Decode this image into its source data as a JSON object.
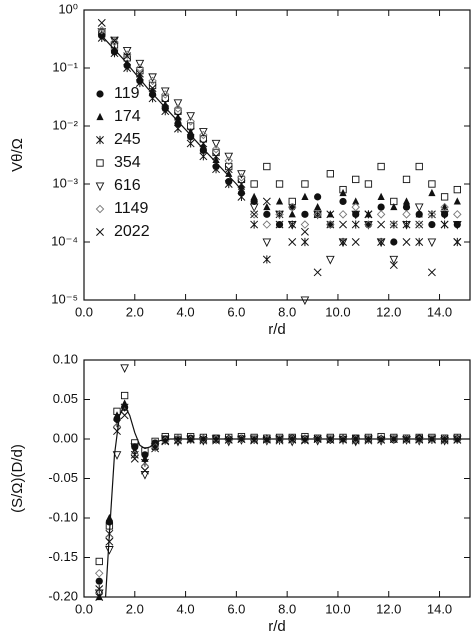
{
  "chart_data": [
    {
      "type": "scatter",
      "log_y": true,
      "legend": "center left",
      "xlabel": "r/d",
      "ylabel": "Vθ/Ω",
      "xlim": [
        0,
        15.2
      ],
      "ylim": [
        1e-05,
        1
      ],
      "xticks": [
        {
          "value": 0,
          "label": "0.0"
        },
        {
          "value": 2,
          "label": "2.0"
        },
        {
          "value": 4,
          "label": "4.0"
        },
        {
          "value": 6,
          "label": "6.0"
        },
        {
          "value": 8,
          "label": "8.0"
        },
        {
          "value": 10,
          "label": "10.0"
        },
        {
          "value": 12,
          "label": "12.0"
        },
        {
          "value": 14,
          "label": "14.0"
        }
      ],
      "yticks": [
        {
          "value": 1,
          "label": "10⁰"
        },
        {
          "value": 0.1,
          "label": "10⁻¹"
        },
        {
          "value": 0.01,
          "label": "10⁻²"
        },
        {
          "value": 0.001,
          "label": "10⁻³"
        },
        {
          "value": 0.0001,
          "label": "10⁻⁴"
        },
        {
          "value": 1e-05,
          "label": "10⁻⁵"
        }
      ],
      "x": [
        0.7,
        1.2,
        1.7,
        2.2,
        2.7,
        3.2,
        3.7,
        4.2,
        4.7,
        5.2,
        5.7,
        6.2,
        6.7,
        7.2,
        7.7,
        8.2,
        8.7,
        9.2,
        9.7,
        10.2,
        10.7,
        11.2,
        11.7,
        12.2,
        12.7,
        13.2,
        13.7,
        14.2,
        14.7
      ],
      "series": [
        {
          "name": "119",
          "marker": "circle",
          "color": "#111",
          "values": [
            0.36,
            0.19,
            0.11,
            0.06,
            0.035,
            0.02,
            0.011,
            0.0065,
            0.0038,
            0.002,
            0.0011,
            0.0007,
            0.0005,
            0.0003,
            0.0002,
            0.0004,
            0.0003,
            0.0006,
            0.0002,
            0.0005,
            0.0003,
            0.0002,
            0.0004,
            0.0001,
            0.0004,
            0.0003,
            0.0002,
            0.0003,
            0.0002
          ]
        },
        {
          "name": "174",
          "marker": "triangle",
          "color": "#111",
          "values": [
            0.38,
            0.21,
            0.12,
            0.07,
            0.04,
            0.023,
            0.014,
            0.0078,
            0.0045,
            0.0026,
            0.0015,
            0.0009,
            0.0006,
            0.0004,
            0.0005,
            0.0003,
            0.0006,
            0.0004,
            0.0003,
            0.0007,
            0.0005,
            0.0003,
            0.0006,
            0.0004,
            0.0005,
            0.0003,
            0.0007,
            0.0004,
            0.0005
          ]
        },
        {
          "name": "245",
          "marker": "asterisk",
          "color": "#111",
          "values": [
            0.33,
            0.18,
            0.1,
            0.055,
            0.03,
            0.018,
            0.009,
            0.005,
            0.003,
            0.0018,
            0.001,
            0.0006,
            0.0002,
            5e-05,
            0.0003,
            0.0002,
            0.0001,
            0.0003,
            0.0002,
            0.0001,
            0.0002,
            0.0003,
            0.0001,
            0.0002,
            0.0002,
            0.0001,
            0.0003,
            0.0002,
            0.0001
          ]
        },
        {
          "name": "354",
          "marker": "square",
          "color": "#111",
          "values": [
            0.4,
            0.25,
            0.15,
            0.09,
            0.05,
            0.03,
            0.018,
            0.01,
            0.006,
            0.0035,
            0.002,
            0.0012,
            0.001,
            0.002,
            0.001,
            0.0005,
            0.001,
            0.0003,
            0.0015,
            0.0008,
            0.0012,
            0.001,
            0.002,
            0.0005,
            0.0012,
            0.002,
            0.001,
            0.0006,
            0.0008
          ]
        },
        {
          "name": "616",
          "marker": "down-triangle",
          "color": "#111",
          "values": [
            0.42,
            0.3,
            0.2,
            0.12,
            0.07,
            0.04,
            0.025,
            0.015,
            0.008,
            0.005,
            0.003,
            0.0015,
            0.0004,
            0.0001,
            0.0003,
            0.0002,
            1e-05,
            0.0003,
            5e-05,
            0.0001,
            0.0003,
            0.0002,
            0.0001,
            5e-05,
            0.0002,
            0.0004,
            0.0001,
            0.0003,
            0.0002
          ]
        },
        {
          "name": "1149",
          "marker": "diamond",
          "color": "#777",
          "values": [
            0.45,
            0.28,
            0.17,
            0.1,
            0.06,
            0.035,
            0.02,
            0.012,
            0.007,
            0.004,
            0.0025,
            0.0013,
            0.0003,
            0.0002,
            0.0003,
            0.0004,
            0.0002,
            0.0003,
            0.0002,
            0.0003,
            0.0004,
            0.0002,
            0.0003,
            0.0002,
            0.0003,
            0.0002,
            0.0003,
            0.0004,
            0.0003
          ]
        },
        {
          "name": "2022",
          "marker": "cross",
          "color": "#111",
          "values": [
            0.6,
            0.3,
            0.16,
            0.08,
            0.045,
            0.025,
            0.015,
            0.008,
            0.005,
            0.003,
            0.0018,
            0.001,
            0.0003,
            0.0005,
            0.0002,
            0.0001,
            0.00015,
            3e-05,
            0.0003,
            0.0002,
            0.0001,
            0.0003,
            0.0002,
            4e-05,
            0.0001,
            0.0002,
            3e-05,
            0.0002,
            0.0001
          ]
        },
        {
          "marker": "line",
          "color": "#111",
          "x": [
            0.6,
            1.5,
            2.5,
            3.5,
            4.5,
            5.5,
            6.0,
            6.3
          ],
          "values": [
            0.4,
            0.15,
            0.045,
            0.015,
            0.005,
            0.0017,
            0.001,
            0.0007
          ]
        }
      ]
    },
    {
      "type": "scatter",
      "xlabel": "r/d",
      "ylabel": "(S/Ω)(D/d)",
      "xlim": [
        0,
        15.2
      ],
      "ylim": [
        -0.2,
        0.1
      ],
      "xticks": [
        {
          "value": 0,
          "label": "0.0"
        },
        {
          "value": 2,
          "label": "2.0"
        },
        {
          "value": 4,
          "label": "4.0"
        },
        {
          "value": 6,
          "label": "6.0"
        },
        {
          "value": 8,
          "label": "8.0"
        },
        {
          "value": 10,
          "label": "10.0"
        },
        {
          "value": 12,
          "label": "12.0"
        },
        {
          "value": 14,
          "label": "14.0"
        }
      ],
      "yticks": [
        {
          "value": 0.1,
          "label": "0.10"
        },
        0.05,
        {
          "value": 0,
          "label": "0.00"
        },
        -0.05,
        {
          "value": -0.1,
          "label": "-0.10"
        },
        -0.15,
        {
          "value": -0.2,
          "label": "-0.20"
        }
      ],
      "x": [
        0.6,
        1.0,
        1.3,
        1.6,
        2.0,
        2.4,
        2.8,
        3.2,
        3.7,
        4.2,
        4.7,
        5.2,
        5.7,
        6.2,
        6.7,
        7.2,
        7.7,
        8.2,
        8.7,
        9.2,
        9.7,
        10.2,
        10.7,
        11.2,
        11.7,
        12.2,
        12.7,
        13.2,
        13.7,
        14.2,
        14.7
      ],
      "series": [
        {
          "marker": "circle",
          "color": "#111",
          "values": [
            -0.18,
            -0.105,
            0.025,
            0.04,
            -0.01,
            -0.02,
            -0.005,
            0,
            0,
            0.001,
            0,
            -0.001,
            0,
            0.001,
            0,
            -0.001,
            0,
            0.001,
            0,
            0,
            -0.001,
            0,
            0.001,
            0,
            0,
            -0.001,
            0,
            0.001,
            0,
            0,
            0
          ]
        },
        {
          "marker": "triangle",
          "color": "#111",
          "values": [
            -0.2,
            -0.1,
            0.03,
            0.045,
            -0.015,
            -0.025,
            -0.01,
            0,
            0.001,
            0,
            0.001,
            0,
            0.001,
            0,
            0,
            0.001,
            0,
            0,
            0.001,
            0,
            0,
            0.001,
            0,
            0,
            0.001,
            0,
            0,
            0.001,
            0,
            0,
            0.001
          ]
        },
        {
          "marker": "asterisk",
          "color": "#111",
          "values": [
            -0.19,
            -0.12,
            0.02,
            0.04,
            -0.02,
            -0.03,
            -0.008,
            -0.002,
            -0.001,
            0,
            -0.002,
            0,
            -0.001,
            0,
            -0.001,
            0,
            -0.002,
            0,
            -0.001,
            0,
            -0.001,
            0,
            -0.002,
            0,
            -0.001,
            0,
            -0.001,
            0,
            -0.001,
            0,
            -0.001
          ]
        },
        {
          "marker": "square",
          "color": "#111",
          "values": [
            -0.155,
            -0.11,
            0.035,
            0.055,
            -0.005,
            -0.015,
            -0.003,
            0.003,
            0.002,
            0.003,
            0.002,
            0.001,
            0.002,
            0.003,
            0.002,
            0.001,
            0.002,
            0.002,
            0.003,
            0.001,
            0.002,
            0.002,
            0.001,
            0.002,
            0.003,
            0.002,
            0.001,
            0.002,
            0.002,
            0.001,
            0.002
          ]
        },
        {
          "marker": "down-triangle",
          "color": "#111",
          "values": [
            -0.195,
            -0.14,
            -0.02,
            0.09,
            -0.01,
            -0.045,
            -0.01,
            0,
            -0.003,
            0,
            -0.002,
            0,
            -0.003,
            -0.001,
            0,
            -0.002,
            0,
            -0.003,
            0,
            -0.002,
            0,
            -0.001,
            -0.003,
            0,
            -0.002,
            0,
            -0.001,
            -0.002,
            0,
            -0.002,
            0
          ]
        },
        {
          "marker": "diamond",
          "color": "#777",
          "values": [
            -0.17,
            -0.125,
            0.015,
            0.035,
            -0.02,
            -0.035,
            -0.01,
            -0.002,
            0,
            -0.001,
            0,
            0,
            -0.001,
            0,
            0,
            -0.001,
            0,
            0,
            -0.001,
            0,
            0,
            -0.001,
            0,
            0,
            -0.001,
            0,
            0,
            -0.001,
            0,
            0,
            -0.001
          ]
        },
        {
          "marker": "cross",
          "color": "#111",
          "values": [
            -0.2,
            -0.13,
            0.01,
            0.03,
            -0.025,
            -0.04,
            -0.012,
            -0.003,
            -0.002,
            -0.001,
            0,
            -0.002,
            -0.001,
            0,
            -0.002,
            -0.001,
            0,
            -0.001,
            -0.002,
            0,
            -0.001,
            -0.001,
            0,
            -0.002,
            -0.001,
            0,
            -0.001,
            -0.001,
            0,
            -0.002,
            -0.001
          ]
        },
        {
          "marker": "line",
          "color": "#111",
          "x": [
            0.85,
            1.0,
            1.2,
            1.4,
            1.6,
            1.8,
            2.0,
            2.2,
            2.4,
            2.6,
            2.8,
            3.0,
            3.4,
            4.0,
            15.2
          ],
          "values": [
            -0.2,
            -0.12,
            -0.02,
            0.03,
            0.042,
            0.03,
            0.008,
            -0.008,
            -0.012,
            -0.01,
            -0.005,
            -0.002,
            0,
            0,
            0
          ]
        }
      ]
    }
  ]
}
